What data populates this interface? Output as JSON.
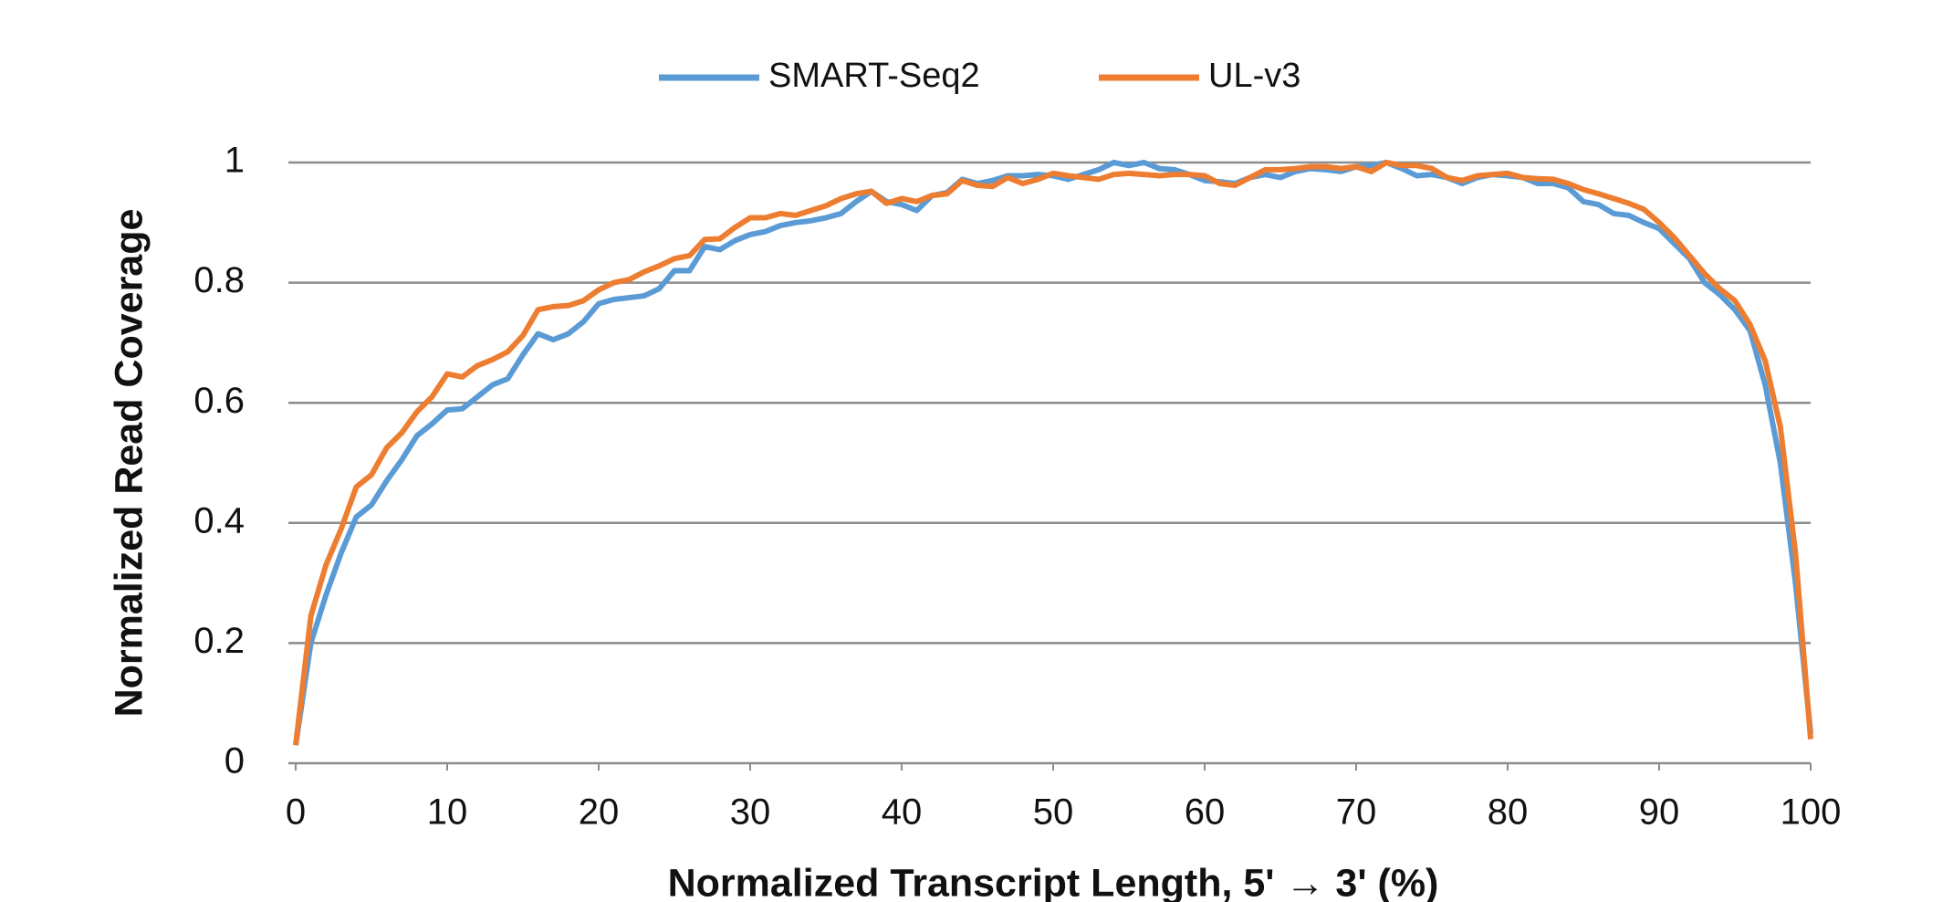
{
  "chart_data": {
    "type": "line",
    "xlabel": "Normalized Transcript Length, 5' → 3' (%)",
    "ylabel": "Normalized Read Coverage",
    "x": [
      0,
      1,
      2,
      3,
      4,
      5,
      6,
      7,
      8,
      9,
      10,
      11,
      12,
      13,
      14,
      15,
      16,
      17,
      18,
      19,
      20,
      21,
      22,
      23,
      24,
      25,
      26,
      27,
      28,
      29,
      30,
      31,
      32,
      33,
      34,
      35,
      36,
      37,
      38,
      39,
      40,
      41,
      42,
      43,
      44,
      45,
      46,
      47,
      48,
      49,
      50,
      51,
      52,
      53,
      54,
      55,
      56,
      57,
      58,
      59,
      60,
      61,
      62,
      63,
      64,
      65,
      66,
      67,
      68,
      69,
      70,
      71,
      72,
      73,
      74,
      75,
      76,
      77,
      78,
      79,
      80,
      81,
      82,
      83,
      84,
      85,
      86,
      87,
      88,
      89,
      90,
      91,
      92,
      93,
      94,
      95,
      96,
      97,
      98,
      99,
      100
    ],
    "series": [
      {
        "name": "SMART-Seq2",
        "color": "#5b9bd5",
        "values": [
          0.03,
          0.2,
          0.28,
          0.35,
          0.41,
          0.43,
          0.47,
          0.505,
          0.545,
          0.565,
          0.588,
          0.59,
          0.61,
          0.63,
          0.64,
          0.68,
          0.715,
          0.705,
          0.715,
          0.735,
          0.765,
          0.772,
          0.775,
          0.778,
          0.79,
          0.82,
          0.82,
          0.86,
          0.855,
          0.87,
          0.88,
          0.885,
          0.895,
          0.9,
          0.903,
          0.908,
          0.915,
          0.935,
          0.952,
          0.935,
          0.93,
          0.92,
          0.945,
          0.95,
          0.972,
          0.965,
          0.97,
          0.978,
          0.978,
          0.98,
          0.978,
          0.972,
          0.98,
          0.988,
          1.0,
          0.995,
          1.0,
          0.99,
          0.988,
          0.98,
          0.97,
          0.968,
          0.965,
          0.975,
          0.98,
          0.975,
          0.985,
          0.99,
          0.988,
          0.985,
          0.993,
          0.995,
          1.0,
          0.99,
          0.978,
          0.98,
          0.975,
          0.965,
          0.975,
          0.98,
          0.978,
          0.975,
          0.965,
          0.965,
          0.958,
          0.935,
          0.93,
          0.915,
          0.912,
          0.9,
          0.89,
          0.865,
          0.84,
          0.8,
          0.78,
          0.755,
          0.72,
          0.63,
          0.5,
          0.3,
          0.05
        ]
      },
      {
        "name": "UL-v3",
        "color": "#ed7d31",
        "values": [
          0.03,
          0.245,
          0.33,
          0.39,
          0.46,
          0.48,
          0.525,
          0.55,
          0.585,
          0.61,
          0.648,
          0.643,
          0.662,
          0.672,
          0.685,
          0.712,
          0.755,
          0.76,
          0.762,
          0.77,
          0.788,
          0.8,
          0.805,
          0.818,
          0.828,
          0.84,
          0.845,
          0.872,
          0.873,
          0.892,
          0.908,
          0.908,
          0.915,
          0.912,
          0.92,
          0.928,
          0.94,
          0.948,
          0.952,
          0.932,
          0.94,
          0.935,
          0.945,
          0.948,
          0.97,
          0.962,
          0.96,
          0.975,
          0.965,
          0.972,
          0.982,
          0.978,
          0.975,
          0.972,
          0.98,
          0.982,
          0.98,
          0.978,
          0.98,
          0.98,
          0.978,
          0.965,
          0.962,
          0.975,
          0.988,
          0.988,
          0.99,
          0.993,
          0.993,
          0.99,
          0.993,
          0.985,
          1.0,
          0.995,
          0.995,
          0.99,
          0.975,
          0.97,
          0.978,
          0.98,
          0.982,
          0.975,
          0.973,
          0.972,
          0.965,
          0.955,
          0.948,
          0.94,
          0.932,
          0.922,
          0.9,
          0.875,
          0.845,
          0.815,
          0.79,
          0.77,
          0.73,
          0.67,
          0.56,
          0.35,
          0.04
        ]
      }
    ],
    "xlim": [
      0,
      100
    ],
    "xticks": [
      0,
      10,
      20,
      30,
      40,
      50,
      60,
      70,
      80,
      90,
      100
    ],
    "ylim": [
      0,
      1
    ],
    "yticks": [
      0,
      0.2,
      0.4,
      0.6,
      0.8,
      1
    ],
    "grid": true,
    "legend": "top"
  }
}
